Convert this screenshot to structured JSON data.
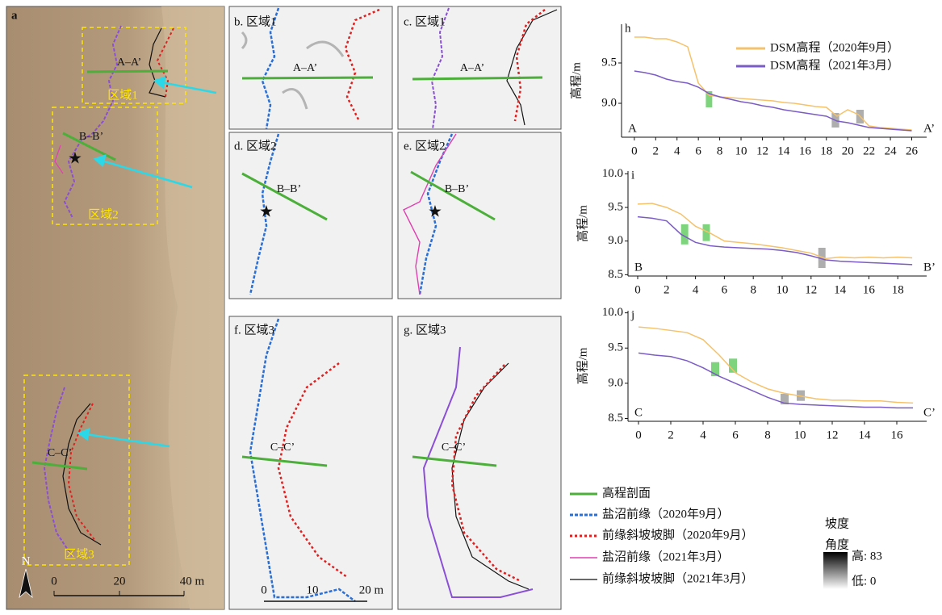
{
  "figure": {
    "panel_a": {
      "label": "a",
      "regions": [
        "区域1",
        "区域2",
        "区域3"
      ],
      "sections": [
        "A–A’",
        "B–B’",
        "C–C’"
      ],
      "north": "N",
      "scale": [
        "0",
        "20",
        "40 m"
      ]
    },
    "panels": [
      "b. 区域1",
      "c. 区域1",
      "d. 区域2",
      "e. 区域2",
      "f. 区域3",
      "g. 区域3"
    ],
    "scale_bf": [
      "0",
      "10",
      "20 m"
    ],
    "legend": [
      "高程剖面",
      "盐沼前缘（2020年9月）",
      "前缘斜坡坡脚（2020年9月）",
      "盐沼前缘（2021年3月）",
      "前缘斜坡坡脚（2021年3月）"
    ],
    "colorbar": {
      "title": [
        "坡度",
        "角度"
      ],
      "high": "高: 83",
      "low": "低: 0"
    }
  },
  "chart_data": [
    {
      "type": "line",
      "label": "h",
      "ylabel": "高程/m",
      "start": "A",
      "end": "A’",
      "x": [
        0,
        1,
        2,
        3,
        4,
        5,
        6,
        7,
        8,
        9,
        10,
        11,
        12,
        13,
        14,
        15,
        16,
        17,
        18,
        19,
        20,
        21,
        22,
        23,
        24,
        25,
        26
      ],
      "series": [
        {
          "name": "DSM高程（2020年9月）",
          "color": "#f5c26b",
          "values": [
            9.82,
            9.82,
            9.8,
            9.8,
            9.76,
            9.7,
            9.25,
            9.1,
            9.08,
            9.07,
            9.06,
            9.05,
            9.04,
            9.03,
            9.01,
            9.0,
            8.98,
            8.96,
            8.95,
            8.84,
            8.92,
            8.86,
            8.72,
            8.7,
            8.69,
            8.68,
            8.67
          ]
        },
        {
          "name": "DSM高程（2021年3月）",
          "color": "#7b5cc4",
          "values": [
            9.4,
            9.38,
            9.35,
            9.3,
            9.27,
            9.25,
            9.2,
            9.12,
            9.08,
            9.05,
            9.02,
            9.0,
            8.97,
            8.95,
            8.92,
            8.9,
            8.88,
            8.86,
            8.84,
            8.78,
            8.76,
            8.73,
            8.7,
            8.69,
            8.68,
            8.67,
            8.66
          ]
        }
      ],
      "highlights": [
        {
          "x": [
            6.7,
            7.3
          ],
          "y": [
            8.95,
            9.15
          ],
          "color": "#66cc66"
        },
        {
          "x": [
            18.5,
            19.2
          ],
          "y": [
            8.7,
            8.88
          ],
          "color": "#a0a0a0"
        },
        {
          "x": [
            20.8,
            21.5
          ],
          "y": [
            8.75,
            8.92
          ],
          "color": "#a0a0a0"
        }
      ],
      "xlim": [
        -1.2,
        27.4
      ],
      "ylim": [
        8.58,
        9.98
      ],
      "xticks": [
        0,
        2,
        4,
        6,
        8,
        10,
        12,
        14,
        16,
        18,
        20,
        22,
        24,
        26
      ],
      "yticks": [
        {
          "value": 9,
          "label": "9.0"
        },
        9.5
      ]
    },
    {
      "type": "line",
      "label": "i",
      "ylabel": "高程/m",
      "start": "B",
      "end": "B’",
      "x": [
        0,
        1,
        2,
        3,
        4,
        5,
        6,
        7,
        8,
        9,
        10,
        11,
        12,
        13,
        14,
        15,
        16,
        17,
        18,
        19
      ],
      "series": [
        {
          "name": "DSM高程（2020年9月）",
          "color": "#f5c26b",
          "values": [
            9.55,
            9.56,
            9.5,
            9.4,
            9.22,
            9.12,
            9.0,
            8.98,
            8.96,
            8.93,
            8.9,
            8.86,
            8.82,
            8.74,
            8.76,
            8.75,
            8.76,
            8.75,
            8.76,
            8.75
          ]
        },
        {
          "name": "DSM高程（2021年3月）",
          "color": "#7b5cc4",
          "values": [
            9.36,
            9.34,
            9.3,
            9.1,
            8.98,
            8.93,
            8.91,
            8.9,
            8.89,
            8.88,
            8.86,
            8.83,
            8.78,
            8.72,
            8.7,
            8.69,
            8.68,
            8.67,
            8.66,
            8.65
          ]
        }
      ],
      "highlights": [
        {
          "x": [
            3.0,
            3.5
          ],
          "y": [
            8.95,
            9.25
          ],
          "color": "#66cc66"
        },
        {
          "x": [
            4.5,
            5.0
          ],
          "y": [
            9.0,
            9.25
          ],
          "color": "#66cc66"
        },
        {
          "x": [
            12.5,
            13.0
          ],
          "y": [
            8.6,
            8.9
          ],
          "color": "#a0a0a0"
        }
      ],
      "xlim": [
        -0.67,
        20
      ],
      "ylim": [
        8.48,
        10.04
      ],
      "xticks": [
        0,
        2,
        4,
        6,
        8,
        10,
        12,
        14,
        16,
        18
      ],
      "yticks": [
        {
          "value": 10,
          "label": "10.0"
        },
        9.5,
        {
          "value": 9,
          "label": "9.0"
        },
        8.5
      ]
    },
    {
      "type": "line",
      "label": "j",
      "ylabel": "高程/m",
      "start": "C",
      "end": "C’",
      "x": [
        0,
        1,
        2,
        3,
        4,
        5,
        6,
        7,
        8,
        9,
        10,
        11,
        12,
        13,
        14,
        15,
        16,
        17
      ],
      "series": [
        {
          "name": "DSM高程（2020年9月）",
          "color": "#f5c26b",
          "values": [
            9.8,
            9.78,
            9.75,
            9.72,
            9.62,
            9.4,
            9.15,
            9.02,
            8.92,
            8.86,
            8.82,
            8.78,
            8.76,
            8.76,
            8.75,
            8.75,
            8.73,
            8.72
          ]
        },
        {
          "name": "DSM高程（2021年3月）",
          "color": "#7b5cc4",
          "values": [
            9.43,
            9.4,
            9.38,
            9.32,
            9.22,
            9.1,
            9.0,
            8.9,
            8.8,
            8.72,
            8.7,
            8.69,
            8.68,
            8.67,
            8.66,
            8.66,
            8.65,
            8.65
          ]
        }
      ],
      "highlights": [
        {
          "x": [
            4.5,
            5.0
          ],
          "y": [
            9.1,
            9.3
          ],
          "color": "#66cc66"
        },
        {
          "x": [
            5.6,
            6.1
          ],
          "y": [
            9.15,
            9.35
          ],
          "color": "#66cc66"
        },
        {
          "x": [
            8.8,
            9.3
          ],
          "y": [
            8.7,
            8.85
          ],
          "color": "#a0a0a0"
        },
        {
          "x": [
            9.8,
            10.3
          ],
          "y": [
            8.75,
            8.9
          ],
          "color": "#a0a0a0"
        }
      ],
      "xlim": [
        -0.65,
        17.85
      ],
      "ylim": [
        8.46,
        10.03
      ],
      "xticks": [
        0,
        2,
        4,
        6,
        8,
        10,
        12,
        14,
        16
      ],
      "yticks": [
        {
          "value": 10,
          "label": "10.0"
        },
        9.5,
        {
          "value": 9,
          "label": "9.0"
        },
        8.5
      ]
    }
  ]
}
